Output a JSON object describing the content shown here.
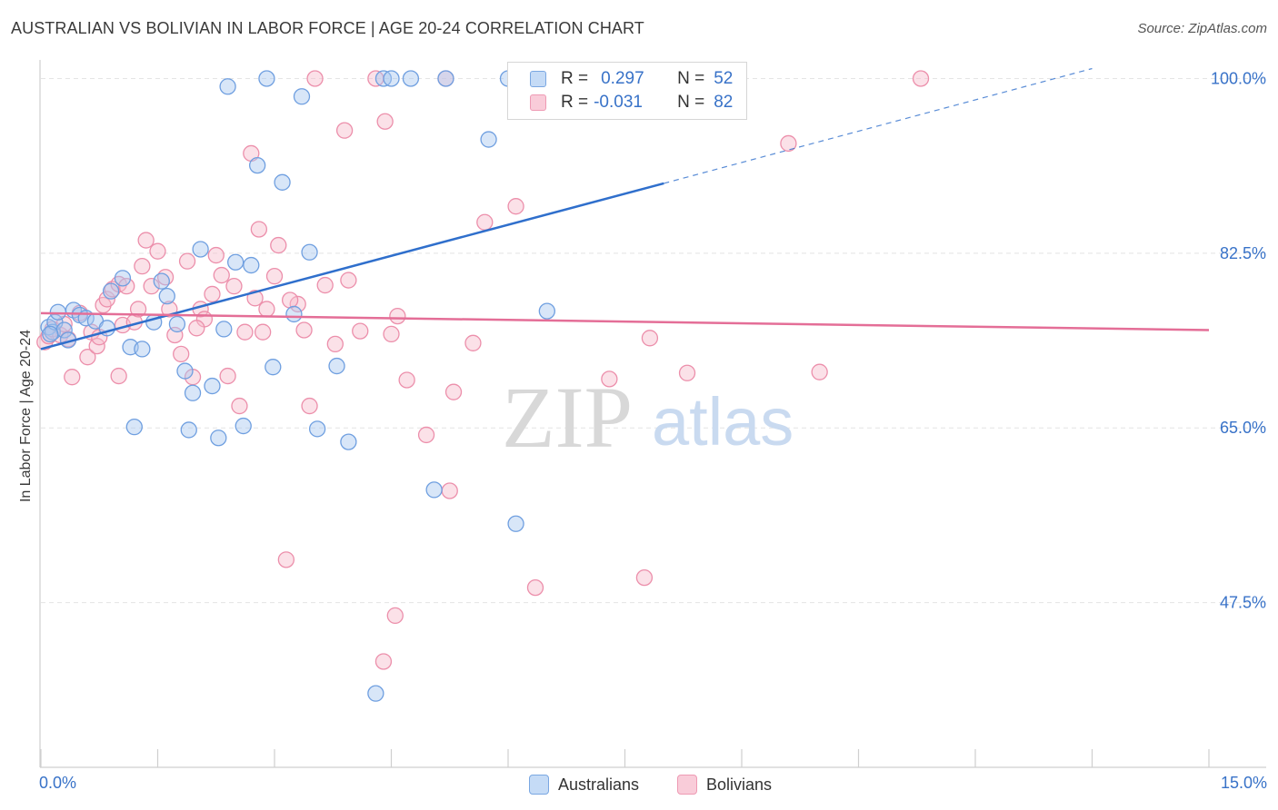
{
  "title": "AUSTRALIAN VS BOLIVIAN IN LABOR FORCE | AGE 20-24 CORRELATION CHART",
  "source": "Source: ZipAtlas.com",
  "watermark": {
    "zip": "ZIP",
    "atlas": "atlas"
  },
  "legend": {
    "r_label": "R =",
    "n_label": "N =",
    "australians": {
      "r": "0.297",
      "n": "52"
    },
    "bolivians": {
      "r": "-0.031",
      "n": "82"
    }
  },
  "bottom_legend": {
    "australians": "Australians",
    "bolivians": "Bolivians"
  },
  "colors": {
    "australians_fill": "#a9c8f0",
    "australians_stroke": "#6f9fe0",
    "australians_line": "#2f6fcc",
    "bolivians_fill": "#f6bccd",
    "bolivians_stroke": "#ec8fab",
    "bolivians_line": "#e46e97",
    "tick_text": "#3872c8",
    "grid": "#e4e4e4"
  },
  "chart_data": {
    "type": "scatter",
    "title": "AUSTRALIAN VS BOLIVIAN IN LABOR FORCE | AGE 20-24 CORRELATION CHART",
    "xlabel": "",
    "ylabel": "In Labor Force | Age 20-24",
    "xlim": [
      0,
      15
    ],
    "ylim": [
      31,
      101.5
    ],
    "x_tick_labels": [
      "0.0%",
      "15.0%"
    ],
    "y_ticks": [
      47.5,
      65.0,
      82.5,
      100.0
    ],
    "y_tick_labels": [
      "47.5%",
      "65.0%",
      "82.5%",
      "100.0%"
    ],
    "grid": true,
    "legend_position": "top-center",
    "series": [
      {
        "name": "Australians",
        "r": 0.297,
        "n": 52,
        "trend": {
          "x": [
            0.0,
            8.0
          ],
          "y": [
            72.9,
            89.5
          ],
          "dashed_x": [
            8.0,
            13.5
          ],
          "dashed_y": [
            89.5,
            101.0
          ]
        },
        "points": [
          [
            0.1,
            75.1
          ],
          [
            0.15,
            74.6
          ],
          [
            0.18,
            75.6
          ],
          [
            0.22,
            76.6
          ],
          [
            0.3,
            74.8
          ],
          [
            0.35,
            73.8
          ],
          [
            0.42,
            76.8
          ],
          [
            0.5,
            76.3
          ],
          [
            0.58,
            76.0
          ],
          [
            0.7,
            75.7
          ],
          [
            0.85,
            75.0
          ],
          [
            0.9,
            78.7
          ],
          [
            1.05,
            80.0
          ],
          [
            1.15,
            73.1
          ],
          [
            1.2,
            65.1
          ],
          [
            1.3,
            72.9
          ],
          [
            1.45,
            75.6
          ],
          [
            1.55,
            79.7
          ],
          [
            1.62,
            78.2
          ],
          [
            1.75,
            75.4
          ],
          [
            1.85,
            70.7
          ],
          [
            1.9,
            64.8
          ],
          [
            1.95,
            68.5
          ],
          [
            2.05,
            82.9
          ],
          [
            2.2,
            69.2
          ],
          [
            2.28,
            64.0
          ],
          [
            2.35,
            74.9
          ],
          [
            2.4,
            99.2
          ],
          [
            2.5,
            81.6
          ],
          [
            2.6,
            65.2
          ],
          [
            2.7,
            81.3
          ],
          [
            2.78,
            91.3
          ],
          [
            2.9,
            100.0
          ],
          [
            2.98,
            71.1
          ],
          [
            3.1,
            89.6
          ],
          [
            3.25,
            76.4
          ],
          [
            3.35,
            98.2
          ],
          [
            3.45,
            82.6
          ],
          [
            3.55,
            64.9
          ],
          [
            3.8,
            71.2
          ],
          [
            3.95,
            63.6
          ],
          [
            4.3,
            38.4
          ],
          [
            4.4,
            100.0
          ],
          [
            4.5,
            100.0
          ],
          [
            4.75,
            100.0
          ],
          [
            5.05,
            58.8
          ],
          [
            5.2,
            100.0
          ],
          [
            5.75,
            93.9
          ],
          [
            6.0,
            100.0
          ],
          [
            6.1,
            55.4
          ],
          [
            6.5,
            76.7
          ],
          [
            0.12,
            74.4
          ]
        ]
      },
      {
        "name": "Bolivians",
        "r": -0.031,
        "n": 82,
        "trend": {
          "x": [
            0.0,
            15.0
          ],
          "y": [
            76.5,
            74.8
          ]
        },
        "points": [
          [
            0.05,
            73.6
          ],
          [
            0.1,
            74.2
          ],
          [
            0.15,
            74.9
          ],
          [
            0.25,
            74.3
          ],
          [
            0.35,
            73.9
          ],
          [
            0.4,
            70.1
          ],
          [
            0.5,
            76.5
          ],
          [
            0.6,
            72.1
          ],
          [
            0.65,
            74.6
          ],
          [
            0.72,
            73.2
          ],
          [
            0.8,
            77.3
          ],
          [
            0.85,
            77.9
          ],
          [
            0.92,
            78.9
          ],
          [
            1.0,
            79.4
          ],
          [
            1.05,
            75.3
          ],
          [
            1.1,
            79.2
          ],
          [
            1.2,
            75.6
          ],
          [
            1.3,
            81.2
          ],
          [
            1.35,
            83.8
          ],
          [
            1.42,
            79.2
          ],
          [
            1.5,
            82.7
          ],
          [
            1.6,
            80.1
          ],
          [
            1.65,
            76.9
          ],
          [
            1.72,
            74.3
          ],
          [
            1.8,
            72.4
          ],
          [
            1.88,
            81.7
          ],
          [
            1.95,
            70.1
          ],
          [
            2.05,
            76.9
          ],
          [
            2.1,
            75.9
          ],
          [
            2.2,
            78.4
          ],
          [
            2.25,
            82.3
          ],
          [
            2.32,
            80.3
          ],
          [
            2.4,
            70.2
          ],
          [
            2.48,
            79.2
          ],
          [
            2.55,
            67.2
          ],
          [
            2.62,
            74.6
          ],
          [
            2.7,
            92.5
          ],
          [
            2.75,
            78.0
          ],
          [
            2.8,
            84.9
          ],
          [
            2.85,
            74.6
          ],
          [
            2.9,
            76.9
          ],
          [
            3.0,
            80.2
          ],
          [
            3.05,
            83.3
          ],
          [
            3.15,
            51.8
          ],
          [
            3.3,
            77.4
          ],
          [
            3.38,
            74.8
          ],
          [
            3.45,
            67.2
          ],
          [
            3.52,
            100.0
          ],
          [
            3.65,
            79.3
          ],
          [
            3.78,
            73.4
          ],
          [
            3.9,
            94.8
          ],
          [
            3.95,
            79.8
          ],
          [
            4.1,
            74.7
          ],
          [
            4.3,
            100.0
          ],
          [
            4.42,
            95.7
          ],
          [
            4.5,
            74.4
          ],
          [
            4.58,
            76.2
          ],
          [
            4.7,
            69.8
          ],
          [
            4.95,
            64.3
          ],
          [
            5.25,
            58.7
          ],
          [
            5.3,
            68.6
          ],
          [
            5.55,
            73.5
          ],
          [
            5.7,
            85.6
          ],
          [
            6.1,
            87.2
          ],
          [
            6.3,
            100.0
          ],
          [
            6.35,
            49.0
          ],
          [
            7.3,
            69.9
          ],
          [
            7.75,
            50.0
          ],
          [
            7.82,
            74.0
          ],
          [
            8.3,
            70.5
          ],
          [
            9.6,
            93.5
          ],
          [
            10.0,
            70.6
          ],
          [
            11.3,
            100.0
          ],
          [
            4.4,
            41.6
          ],
          [
            4.55,
            46.2
          ],
          [
            5.2,
            100.0
          ],
          [
            1.0,
            70.2
          ],
          [
            0.3,
            75.4
          ],
          [
            0.75,
            74.1
          ],
          [
            1.25,
            76.9
          ],
          [
            2.0,
            75.0
          ],
          [
            3.2,
            77.8
          ]
        ]
      }
    ]
  }
}
